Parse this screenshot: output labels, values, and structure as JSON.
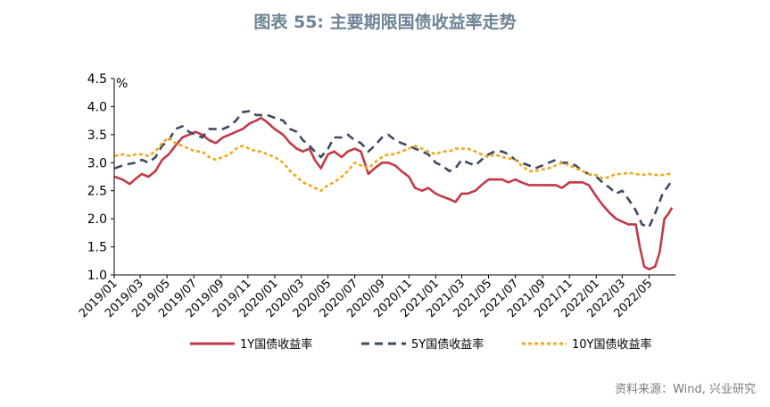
{
  "page": {
    "title": "图表 55: 主要期限国债收益率走势",
    "source": "资料来源：Wind, 兴业研究"
  },
  "chart_data": {
    "type": "line",
    "ylabel": "%",
    "ylim": [
      1.0,
      4.5
    ],
    "yticks": [
      "1.0",
      "1.5",
      "2.0",
      "2.5",
      "3.0",
      "3.5",
      "4.0",
      "4.5"
    ],
    "xlim": [
      "2019-01",
      "2022-06"
    ],
    "xticks": [
      "2019/01",
      "2019/03",
      "2019/05",
      "2019/07",
      "2019/09",
      "2019/11",
      "2020/01",
      "2020/03",
      "2020/05",
      "2020/07",
      "2020/09",
      "2020/11",
      "2021/01",
      "2021/03",
      "2021/05",
      "2021/07",
      "2021/09",
      "2021/11",
      "2022/01",
      "2022/03",
      "2022/05"
    ],
    "legend_position": "bottom",
    "series": [
      {
        "name": "1Y国债收益率",
        "color": "#c23a48",
        "dash": "solid",
        "points": [
          [
            "2019-01-02",
            2.75
          ],
          [
            "2019-01-20",
            2.7
          ],
          [
            "2019-02-05",
            2.62
          ],
          [
            "2019-02-20",
            2.72
          ],
          [
            "2019-03-05",
            2.8
          ],
          [
            "2019-03-20",
            2.75
          ],
          [
            "2019-04-05",
            2.85
          ],
          [
            "2019-04-20",
            3.05
          ],
          [
            "2019-05-05",
            3.15
          ],
          [
            "2019-05-20",
            3.3
          ],
          [
            "2019-06-05",
            3.45
          ],
          [
            "2019-06-20",
            3.5
          ],
          [
            "2019-07-05",
            3.55
          ],
          [
            "2019-07-20",
            3.5
          ],
          [
            "2019-08-05",
            3.4
          ],
          [
            "2019-08-20",
            3.35
          ],
          [
            "2019-09-05",
            3.45
          ],
          [
            "2019-09-20",
            3.5
          ],
          [
            "2019-10-05",
            3.55
          ],
          [
            "2019-10-20",
            3.6
          ],
          [
            "2019-11-05",
            3.7
          ],
          [
            "2019-11-20",
            3.75
          ],
          [
            "2019-12-01",
            3.8
          ],
          [
            "2019-12-15",
            3.72
          ],
          [
            "2020-01-01",
            3.6
          ],
          [
            "2020-01-20",
            3.5
          ],
          [
            "2020-02-05",
            3.35
          ],
          [
            "2020-02-20",
            3.25
          ],
          [
            "2020-03-05",
            3.2
          ],
          [
            "2020-03-20",
            3.25
          ],
          [
            "2020-04-01",
            3.05
          ],
          [
            "2020-04-15",
            2.9
          ],
          [
            "2020-05-01",
            3.15
          ],
          [
            "2020-05-15",
            3.2
          ],
          [
            "2020-06-01",
            3.1
          ],
          [
            "2020-06-15",
            3.2
          ],
          [
            "2020-07-01",
            3.25
          ],
          [
            "2020-07-15",
            3.2
          ],
          [
            "2020-08-01",
            2.8
          ],
          [
            "2020-08-15",
            2.9
          ],
          [
            "2020-09-01",
            3.0
          ],
          [
            "2020-09-15",
            3.0
          ],
          [
            "2020-10-01",
            2.95
          ],
          [
            "2020-10-15",
            2.85
          ],
          [
            "2020-11-01",
            2.75
          ],
          [
            "2020-11-15",
            2.55
          ],
          [
            "2020-12-01",
            2.5
          ],
          [
            "2020-12-15",
            2.55
          ],
          [
            "2021-01-01",
            2.45
          ],
          [
            "2021-01-15",
            2.4
          ],
          [
            "2021-02-01",
            2.35
          ],
          [
            "2021-02-15",
            2.3
          ],
          [
            "2021-03-01",
            2.45
          ],
          [
            "2021-03-15",
            2.45
          ],
          [
            "2021-04-01",
            2.5
          ],
          [
            "2021-04-15",
            2.6
          ],
          [
            "2021-05-01",
            2.7
          ],
          [
            "2021-05-15",
            2.7
          ],
          [
            "2021-06-01",
            2.7
          ],
          [
            "2021-06-15",
            2.65
          ],
          [
            "2021-07-01",
            2.7
          ],
          [
            "2021-07-15",
            2.65
          ],
          [
            "2021-08-01",
            2.6
          ],
          [
            "2021-08-15",
            2.6
          ],
          [
            "2021-09-01",
            2.6
          ],
          [
            "2021-09-15",
            2.6
          ],
          [
            "2021-10-01",
            2.6
          ],
          [
            "2021-10-15",
            2.55
          ],
          [
            "2021-11-01",
            2.65
          ],
          [
            "2021-11-15",
            2.65
          ],
          [
            "2021-12-01",
            2.65
          ],
          [
            "2021-12-15",
            2.6
          ],
          [
            "2022-01-01",
            2.4
          ],
          [
            "2022-01-15",
            2.25
          ],
          [
            "2022-02-01",
            2.1
          ],
          [
            "2022-02-15",
            2.0
          ],
          [
            "2022-03-01",
            1.95
          ],
          [
            "2022-03-15",
            1.9
          ],
          [
            "2022-04-01",
            1.9
          ],
          [
            "2022-04-10",
            1.5
          ],
          [
            "2022-04-20",
            1.15
          ],
          [
            "2022-05-01",
            1.1
          ],
          [
            "2022-05-15",
            1.15
          ],
          [
            "2022-05-25",
            1.4
          ],
          [
            "2022-06-05",
            2.0
          ],
          [
            "2022-06-15",
            2.1
          ],
          [
            "2022-06-22",
            2.2
          ]
        ]
      },
      {
        "name": "5Y国债收益率",
        "color": "#3d4a63",
        "dash": "long",
        "points": [
          [
            "2019-01-02",
            2.9
          ],
          [
            "2019-01-20",
            2.95
          ],
          [
            "2019-02-05",
            2.98
          ],
          [
            "2019-02-20",
            3.0
          ],
          [
            "2019-03-05",
            3.05
          ],
          [
            "2019-03-20",
            3.0
          ],
          [
            "2019-04-05",
            3.1
          ],
          [
            "2019-04-20",
            3.3
          ],
          [
            "2019-05-05",
            3.4
          ],
          [
            "2019-05-20",
            3.6
          ],
          [
            "2019-06-05",
            3.65
          ],
          [
            "2019-06-20",
            3.55
          ],
          [
            "2019-07-05",
            3.5
          ],
          [
            "2019-07-20",
            3.45
          ],
          [
            "2019-08-05",
            3.6
          ],
          [
            "2019-08-20",
            3.6
          ],
          [
            "2019-09-05",
            3.6
          ],
          [
            "2019-09-20",
            3.65
          ],
          [
            "2019-10-05",
            3.75
          ],
          [
            "2019-10-20",
            3.9
          ],
          [
            "2019-11-05",
            3.92
          ],
          [
            "2019-11-20",
            3.85
          ],
          [
            "2019-12-01",
            3.85
          ],
          [
            "2019-12-15",
            3.85
          ],
          [
            "2020-01-01",
            3.8
          ],
          [
            "2020-01-20",
            3.75
          ],
          [
            "2020-02-05",
            3.6
          ],
          [
            "2020-02-20",
            3.55
          ],
          [
            "2020-03-05",
            3.4
          ],
          [
            "2020-03-20",
            3.3
          ],
          [
            "2020-04-01",
            3.2
          ],
          [
            "2020-04-15",
            3.1
          ],
          [
            "2020-05-01",
            3.25
          ],
          [
            "2020-05-15",
            3.45
          ],
          [
            "2020-06-01",
            3.45
          ],
          [
            "2020-06-15",
            3.5
          ],
          [
            "2020-07-01",
            3.4
          ],
          [
            "2020-07-15",
            3.35
          ],
          [
            "2020-08-01",
            3.2
          ],
          [
            "2020-08-15",
            3.3
          ],
          [
            "2020-09-01",
            3.45
          ],
          [
            "2020-09-15",
            3.5
          ],
          [
            "2020-10-01",
            3.4
          ],
          [
            "2020-10-15",
            3.35
          ],
          [
            "2020-11-01",
            3.3
          ],
          [
            "2020-11-15",
            3.25
          ],
          [
            "2020-12-01",
            3.2
          ],
          [
            "2020-12-15",
            3.15
          ],
          [
            "2021-01-01",
            3.0
          ],
          [
            "2021-01-15",
            2.95
          ],
          [
            "2021-02-01",
            2.85
          ],
          [
            "2021-02-15",
            2.9
          ],
          [
            "2021-03-01",
            3.05
          ],
          [
            "2021-03-15",
            3.0
          ],
          [
            "2021-04-01",
            2.95
          ],
          [
            "2021-04-15",
            3.05
          ],
          [
            "2021-05-01",
            3.15
          ],
          [
            "2021-05-15",
            3.2
          ],
          [
            "2021-06-01",
            3.2
          ],
          [
            "2021-06-15",
            3.15
          ],
          [
            "2021-07-01",
            3.05
          ],
          [
            "2021-07-15",
            3.0
          ],
          [
            "2021-08-01",
            2.95
          ],
          [
            "2021-08-15",
            2.9
          ],
          [
            "2021-09-01",
            2.95
          ],
          [
            "2021-09-15",
            3.0
          ],
          [
            "2021-10-01",
            3.05
          ],
          [
            "2021-10-15",
            3.0
          ],
          [
            "2021-11-01",
            3.0
          ],
          [
            "2021-11-15",
            2.95
          ],
          [
            "2021-12-01",
            2.85
          ],
          [
            "2021-12-15",
            2.8
          ],
          [
            "2022-01-01",
            2.75
          ],
          [
            "2022-01-15",
            2.65
          ],
          [
            "2022-02-01",
            2.55
          ],
          [
            "2022-02-15",
            2.45
          ],
          [
            "2022-03-01",
            2.5
          ],
          [
            "2022-03-15",
            2.35
          ],
          [
            "2022-04-01",
            2.15
          ],
          [
            "2022-04-15",
            1.9
          ],
          [
            "2022-05-01",
            1.85
          ],
          [
            "2022-05-15",
            2.1
          ],
          [
            "2022-06-01",
            2.45
          ],
          [
            "2022-06-15",
            2.6
          ],
          [
            "2022-06-22",
            2.7
          ]
        ]
      },
      {
        "name": "10Y国债收益率",
        "color": "#f2a81d",
        "dash": "short",
        "points": [
          [
            "2019-01-02",
            3.12
          ],
          [
            "2019-01-20",
            3.15
          ],
          [
            "2019-02-05",
            3.12
          ],
          [
            "2019-02-20",
            3.15
          ],
          [
            "2019-03-05",
            3.15
          ],
          [
            "2019-03-20",
            3.12
          ],
          [
            "2019-04-05",
            3.2
          ],
          [
            "2019-04-20",
            3.35
          ],
          [
            "2019-05-05",
            3.45
          ],
          [
            "2019-05-20",
            3.35
          ],
          [
            "2019-06-05",
            3.3
          ],
          [
            "2019-06-20",
            3.25
          ],
          [
            "2019-07-05",
            3.2
          ],
          [
            "2019-07-20",
            3.2
          ],
          [
            "2019-08-05",
            3.1
          ],
          [
            "2019-08-20",
            3.05
          ],
          [
            "2019-09-05",
            3.1
          ],
          [
            "2019-09-20",
            3.15
          ],
          [
            "2019-10-05",
            3.25
          ],
          [
            "2019-10-20",
            3.3
          ],
          [
            "2019-11-05",
            3.25
          ],
          [
            "2019-11-20",
            3.2
          ],
          [
            "2019-12-01",
            3.2
          ],
          [
            "2019-12-15",
            3.15
          ],
          [
            "2020-01-01",
            3.1
          ],
          [
            "2020-01-20",
            3.0
          ],
          [
            "2020-02-05",
            2.85
          ],
          [
            "2020-02-20",
            2.75
          ],
          [
            "2020-03-05",
            2.65
          ],
          [
            "2020-03-20",
            2.6
          ],
          [
            "2020-04-01",
            2.55
          ],
          [
            "2020-04-15",
            2.5
          ],
          [
            "2020-05-01",
            2.6
          ],
          [
            "2020-05-15",
            2.65
          ],
          [
            "2020-06-01",
            2.75
          ],
          [
            "2020-06-15",
            2.85
          ],
          [
            "2020-07-01",
            3.0
          ],
          [
            "2020-07-15",
            2.95
          ],
          [
            "2020-08-01",
            2.9
          ],
          [
            "2020-08-15",
            3.0
          ],
          [
            "2020-09-01",
            3.1
          ],
          [
            "2020-09-15",
            3.15
          ],
          [
            "2020-10-01",
            3.15
          ],
          [
            "2020-10-15",
            3.2
          ],
          [
            "2020-11-01",
            3.25
          ],
          [
            "2020-11-15",
            3.3
          ],
          [
            "2020-12-01",
            3.25
          ],
          [
            "2020-12-15",
            3.2
          ],
          [
            "2021-01-01",
            3.15
          ],
          [
            "2021-01-15",
            3.2
          ],
          [
            "2021-02-01",
            3.2
          ],
          [
            "2021-02-15",
            3.25
          ],
          [
            "2021-03-01",
            3.25
          ],
          [
            "2021-03-15",
            3.25
          ],
          [
            "2021-04-01",
            3.2
          ],
          [
            "2021-04-15",
            3.15
          ],
          [
            "2021-05-01",
            3.1
          ],
          [
            "2021-05-15",
            3.15
          ],
          [
            "2021-06-01",
            3.1
          ],
          [
            "2021-06-15",
            3.08
          ],
          [
            "2021-07-01",
            3.05
          ],
          [
            "2021-07-15",
            2.95
          ],
          [
            "2021-08-01",
            2.85
          ],
          [
            "2021-08-15",
            2.85
          ],
          [
            "2021-09-01",
            2.88
          ],
          [
            "2021-09-15",
            2.9
          ],
          [
            "2021-10-01",
            2.95
          ],
          [
            "2021-10-15",
            3.0
          ],
          [
            "2021-11-01",
            2.95
          ],
          [
            "2021-11-15",
            2.9
          ],
          [
            "2021-12-01",
            2.85
          ],
          [
            "2021-12-15",
            2.8
          ],
          [
            "2022-01-01",
            2.78
          ],
          [
            "2022-01-15",
            2.72
          ],
          [
            "2022-02-01",
            2.75
          ],
          [
            "2022-02-15",
            2.8
          ],
          [
            "2022-03-01",
            2.8
          ],
          [
            "2022-03-15",
            2.82
          ],
          [
            "2022-04-01",
            2.8
          ],
          [
            "2022-04-15",
            2.78
          ],
          [
            "2022-05-01",
            2.8
          ],
          [
            "2022-05-15",
            2.78
          ],
          [
            "2022-06-01",
            2.78
          ],
          [
            "2022-06-15",
            2.8
          ],
          [
            "2022-06-22",
            2.8
          ]
        ]
      }
    ]
  }
}
